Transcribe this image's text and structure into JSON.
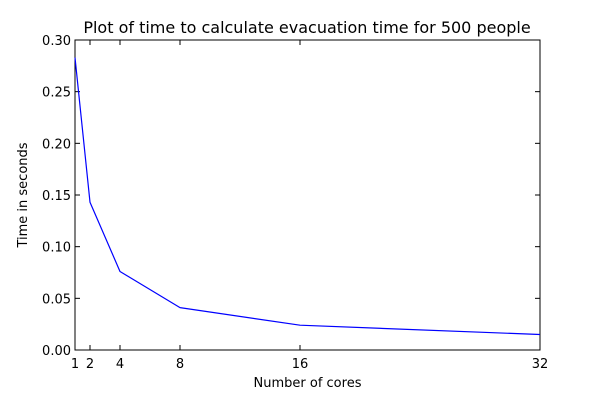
{
  "chart_data": {
    "type": "line",
    "title": "Plot of time to calculate evacuation time for 500 people",
    "xlabel": "Number of cores",
    "ylabel": "Time in seconds",
    "xlim": [
      1,
      32
    ],
    "ylim": [
      0.0,
      0.3
    ],
    "x_ticks": [
      1,
      2,
      4,
      8,
      16,
      32
    ],
    "x_tick_labels": [
      "1",
      "2",
      "4",
      "8",
      "16",
      "32"
    ],
    "y_ticks": [
      0.0,
      0.05,
      0.1,
      0.15,
      0.2,
      0.25,
      0.3
    ],
    "y_tick_labels": [
      "0.00",
      "0.05",
      "0.10",
      "0.15",
      "0.20",
      "0.25",
      "0.30"
    ],
    "grid": false,
    "series": [
      {
        "color": "#0000ff",
        "x": [
          1,
          2,
          4,
          8,
          16,
          32
        ],
        "y": [
          0.283,
          0.143,
          0.076,
          0.041,
          0.024,
          0.015
        ]
      }
    ]
  }
}
